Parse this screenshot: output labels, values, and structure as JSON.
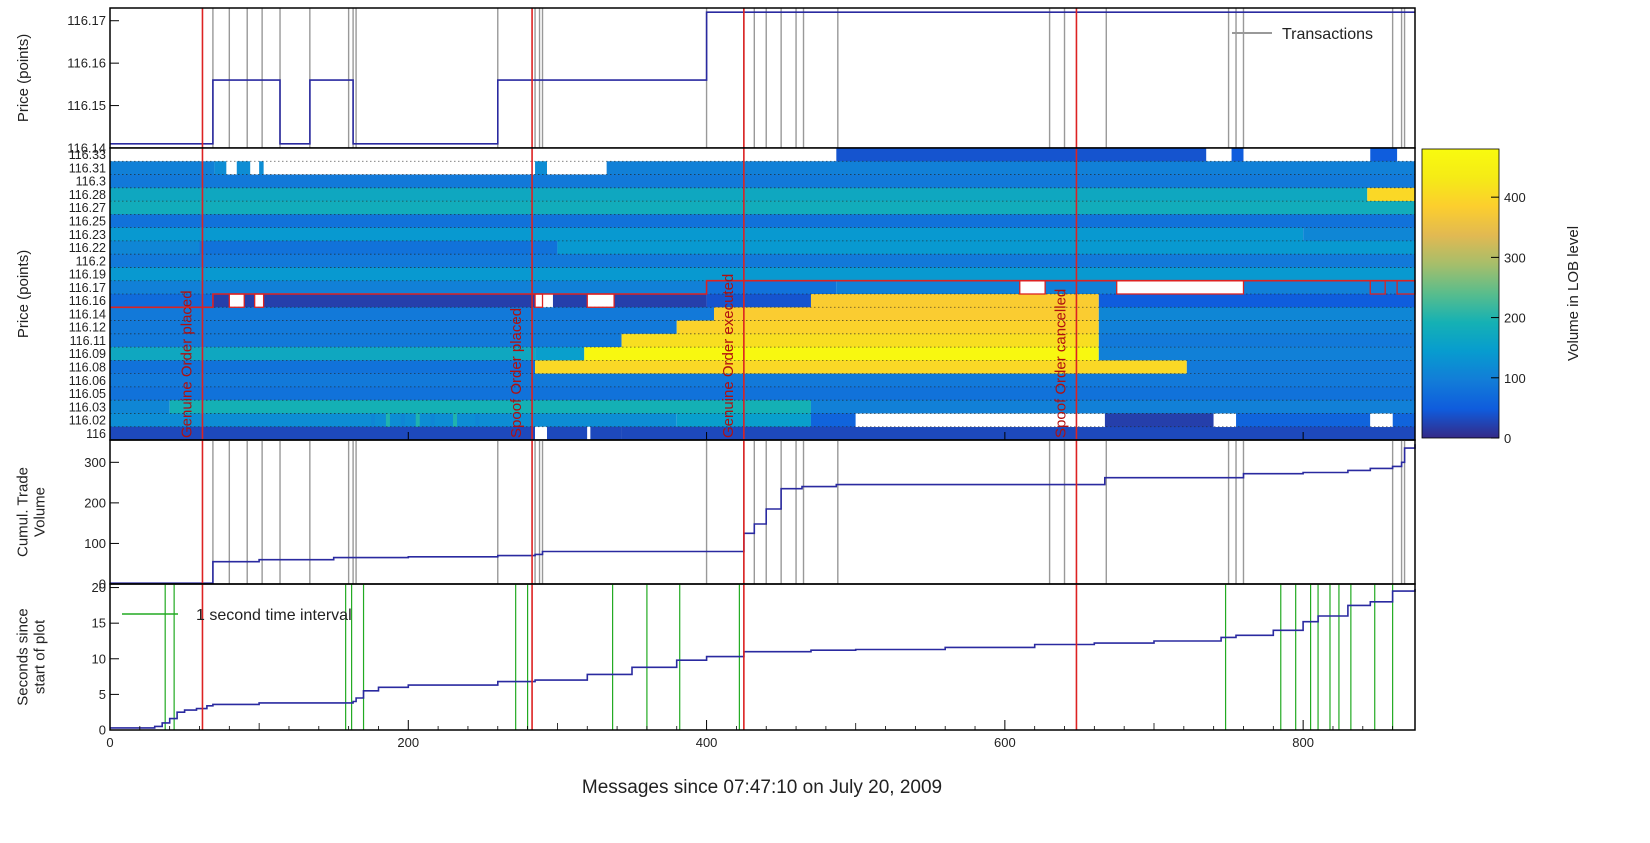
{
  "chart_data": [
    {
      "panel": "price",
      "type": "line",
      "ylabel": "Price (points)",
      "ylim": [
        116.14,
        116.173
      ],
      "yticks": [
        "116.14",
        "116.15",
        "116.16",
        "116.17"
      ],
      "legend": {
        "label": "Transactions",
        "placement": "top-right",
        "color": "#999999"
      },
      "series": [
        {
          "color": "#2a2aa0",
          "x": [
            0,
            69,
            69,
            114,
            114,
            134,
            134,
            163,
            163,
            260,
            260,
            400,
            400,
            875
          ],
          "y": [
            116.141,
            116.141,
            116.156,
            116.156,
            116.141,
            116.141,
            116.156,
            116.156,
            116.141,
            116.141,
            116.156,
            116.156,
            116.172,
            116.172
          ]
        }
      ]
    },
    {
      "panel": "lob",
      "type": "heatmap",
      "ylabel": "Price (points)",
      "levels": [
        "116",
        "116.02",
        "116.03",
        "116.05",
        "116.06",
        "116.08",
        "116.09",
        "116.11",
        "116.12",
        "116.14",
        "116.16",
        "116.17",
        "116.19",
        "116.2",
        "116.22",
        "116.23",
        "116.25",
        "116.27",
        "116.28",
        "116.3",
        "116.31",
        "116.33"
      ],
      "colorbar": {
        "label": "Volume in LOB level",
        "ticks": [
          0,
          100,
          200,
          300,
          400
        ],
        "max": 480
      },
      "cells": [
        {
          "level": "116.33",
          "x0": 487,
          "x1": 735,
          "vol": 40
        },
        {
          "level": "116.33",
          "x0": 752,
          "x1": 760,
          "vol": 50
        },
        {
          "level": "116.33",
          "x0": 845,
          "x1": 863,
          "vol": 50
        },
        {
          "level": "116.31",
          "x0": 0,
          "x1": 70,
          "vol": 100
        },
        {
          "level": "116.31",
          "x0": 70,
          "x1": 78,
          "vol": 120
        },
        {
          "level": "116.31",
          "x0": 85,
          "x1": 94,
          "vol": 120
        },
        {
          "level": "116.31",
          "x0": 100,
          "x1": 103,
          "vol": 120
        },
        {
          "level": "116.31",
          "x0": 285,
          "x1": 293,
          "vol": 120
        },
        {
          "level": "116.31",
          "x0": 333,
          "x1": 875,
          "vol": 100
        },
        {
          "level": "116.3",
          "x0": 0,
          "x1": 875,
          "vol": 90
        },
        {
          "level": "116.28",
          "x0": 0,
          "x1": 843,
          "vol": 170
        },
        {
          "level": "116.28",
          "x0": 843,
          "x1": 875,
          "vol": 400
        },
        {
          "level": "116.27",
          "x0": 0,
          "x1": 875,
          "vol": 180
        },
        {
          "level": "116.25",
          "x0": 0,
          "x1": 875,
          "vol": 80
        },
        {
          "level": "116.23",
          "x0": 0,
          "x1": 800,
          "vol": 140
        },
        {
          "level": "116.23",
          "x0": 800,
          "x1": 875,
          "vol": 110
        },
        {
          "level": "116.22",
          "x0": 0,
          "x1": 60,
          "vol": 110
        },
        {
          "level": "116.22",
          "x0": 60,
          "x1": 300,
          "vol": 80
        },
        {
          "level": "116.22",
          "x0": 300,
          "x1": 875,
          "vol": 140
        },
        {
          "level": "116.2",
          "x0": 0,
          "x1": 875,
          "vol": 90
        },
        {
          "level": "116.19",
          "x0": 0,
          "x1": 875,
          "vol": 140
        },
        {
          "level": "116.17",
          "x0": 0,
          "x1": 400,
          "vol": 100
        },
        {
          "level": "116.17",
          "x0": 400,
          "x1": 487,
          "vol": 80
        },
        {
          "level": "116.17",
          "x0": 487,
          "x1": 875,
          "vol": 100
        },
        {
          "level": "116.16",
          "x0": 0,
          "x1": 69,
          "vol": 70
        },
        {
          "level": "116.16",
          "x0": 69,
          "x1": 285,
          "vol": 20
        },
        {
          "level": "116.16",
          "x0": 297,
          "x1": 400,
          "vol": 20
        },
        {
          "level": "116.16",
          "x0": 400,
          "x1": 470,
          "vol": 40
        },
        {
          "level": "116.16",
          "x0": 470,
          "x1": 663,
          "vol": 380
        },
        {
          "level": "116.16",
          "x0": 663,
          "x1": 875,
          "vol": 50
        },
        {
          "level": "116.14",
          "x0": 0,
          "x1": 405,
          "vol": 90
        },
        {
          "level": "116.14",
          "x0": 405,
          "x1": 663,
          "vol": 380
        },
        {
          "level": "116.14",
          "x0": 663,
          "x1": 875,
          "vol": 110
        },
        {
          "level": "116.12",
          "x0": 0,
          "x1": 380,
          "vol": 90
        },
        {
          "level": "116.12",
          "x0": 380,
          "x1": 663,
          "vol": 390
        },
        {
          "level": "116.12",
          "x0": 663,
          "x1": 875,
          "vol": 100
        },
        {
          "level": "116.11",
          "x0": 0,
          "x1": 343,
          "vol": 90
        },
        {
          "level": "116.11",
          "x0": 343,
          "x1": 663,
          "vol": 410
        },
        {
          "level": "116.11",
          "x0": 663,
          "x1": 875,
          "vol": 90
        },
        {
          "level": "116.09",
          "x0": 0,
          "x1": 285,
          "vol": 170
        },
        {
          "level": "116.09",
          "x0": 285,
          "x1": 318,
          "vol": 150
        },
        {
          "level": "116.09",
          "x0": 318,
          "x1": 663,
          "vol": 470
        },
        {
          "level": "116.09",
          "x0": 663,
          "x1": 875,
          "vol": 100
        },
        {
          "level": "116.08",
          "x0": 0,
          "x1": 285,
          "vol": 80
        },
        {
          "level": "116.08",
          "x0": 285,
          "x1": 722,
          "vol": 400
        },
        {
          "level": "116.08",
          "x0": 722,
          "x1": 875,
          "vol": 90
        },
        {
          "level": "116.06",
          "x0": 0,
          "x1": 875,
          "vol": 90
        },
        {
          "level": "116.05",
          "x0": 0,
          "x1": 875,
          "vol": 80
        },
        {
          "level": "116.03",
          "x0": 0,
          "x1": 40,
          "vol": 110
        },
        {
          "level": "116.03",
          "x0": 40,
          "x1": 470,
          "vol": 190
        },
        {
          "level": "116.03",
          "x0": 470,
          "x1": 875,
          "vol": 100
        },
        {
          "level": "116.02",
          "x0": 0,
          "x1": 380,
          "vol": 120
        },
        {
          "level": "116.02",
          "x0": 380,
          "x1": 470,
          "vol": 150
        },
        {
          "level": "116.02",
          "x0": 470,
          "x1": 500,
          "vol": 60
        },
        {
          "level": "116.02",
          "x0": 667,
          "x1": 740,
          "vol": 20
        },
        {
          "level": "116.02",
          "x0": 755,
          "x1": 845,
          "vol": 60
        },
        {
          "level": "116.02",
          "x0": 860,
          "x1": 875,
          "vol": 60
        },
        {
          "level": "116",
          "x0": 0,
          "x1": 285,
          "vol": 30
        },
        {
          "level": "116",
          "x0": 293,
          "x1": 320,
          "vol": 30
        },
        {
          "level": "116",
          "x0": 322,
          "x1": 343,
          "vol": 30
        },
        {
          "level": "116",
          "x0": 343,
          "x1": 875,
          "vol": 30
        }
      ],
      "white_cells": [
        {
          "level": "116.16",
          "x0": 80,
          "x1": 90
        },
        {
          "level": "116.16",
          "x0": 97,
          "x1": 103
        },
        {
          "level": "116.16",
          "x0": 285,
          "x1": 290
        },
        {
          "level": "116.16",
          "x0": 320,
          "x1": 338
        },
        {
          "level": "116.17",
          "x0": 610,
          "x1": 627
        },
        {
          "level": "116.17",
          "x0": 675,
          "x1": 760
        },
        {
          "level": "116.02",
          "x0": 500,
          "x1": 667
        },
        {
          "level": "116.02",
          "x0": 740,
          "x1": 755
        },
        {
          "level": "116.02",
          "x0": 845,
          "x1": 860
        },
        {
          "level": "116",
          "x0": 285,
          "x1": 293
        },
        {
          "level": "116",
          "x0": 320,
          "x1": 322
        }
      ]
    },
    {
      "panel": "cumulative",
      "type": "line",
      "ylabel": "Cumul. Trade Volume",
      "ylim": [
        0,
        355
      ],
      "yticks": [
        0,
        100,
        200,
        300
      ],
      "series": [
        {
          "color": "#2a2aa0",
          "x": [
            0,
            69,
            69,
            100,
            150,
            200,
            260,
            285,
            290,
            425,
            425,
            432,
            432,
            440,
            440,
            450,
            450,
            464,
            487,
            667,
            667,
            755,
            760,
            800,
            830,
            845,
            860,
            866,
            868,
            875
          ],
          "y": [
            2,
            2,
            55,
            60,
            65,
            67,
            70,
            73,
            80,
            80,
            125,
            125,
            148,
            148,
            185,
            185,
            235,
            240,
            245,
            245,
            262,
            262,
            272,
            275,
            280,
            285,
            290,
            300,
            335,
            345
          ]
        }
      ]
    },
    {
      "panel": "seconds",
      "type": "line",
      "ylabel": "Seconds since start of plot",
      "ylim": [
        0,
        20.5
      ],
      "yticks": [
        0,
        5,
        10,
        15,
        20
      ],
      "legend": {
        "label": "1 second time interval",
        "placement": "top-left",
        "color": "#22aa22"
      },
      "series": [
        {
          "color": "#2a2aa0",
          "x": [
            0,
            30,
            35,
            40,
            45,
            50,
            58,
            65,
            69,
            100,
            163,
            165,
            170,
            180,
            200,
            260,
            285,
            320,
            350,
            380,
            400,
            425,
            470,
            500,
            560,
            620,
            660,
            700,
            745,
            755,
            780,
            800,
            810,
            830,
            845,
            860,
            875
          ],
          "y": [
            0.3,
            0.5,
            1.0,
            1.6,
            2.5,
            2.8,
            3.0,
            3.4,
            3.6,
            3.8,
            4.0,
            4.5,
            5.5,
            6.0,
            6.3,
            6.8,
            7.0,
            7.8,
            8.8,
            9.8,
            10.3,
            11.0,
            11.2,
            11.3,
            11.6,
            12.0,
            12.2,
            12.5,
            13.0,
            13.3,
            14.0,
            15.2,
            16.0,
            17.5,
            18.0,
            19.5,
            19.8
          ]
        }
      ]
    }
  ],
  "xaxis": {
    "label": "Messages since 07:47:10 on July 20, 2009",
    "xlim": [
      0,
      875
    ],
    "ticks": [
      0,
      200,
      400,
      600,
      800
    ]
  },
  "transactions_x": [
    69,
    80,
    92,
    102,
    114,
    134,
    160,
    163,
    165,
    260,
    285,
    288,
    290,
    400,
    425,
    432,
    440,
    450,
    460,
    465,
    488,
    630,
    640,
    668,
    750,
    755,
    760,
    860,
    866,
    868
  ],
  "second_intervals_x": [
    37,
    43,
    158,
    162,
    170,
    272,
    280,
    337,
    360,
    382,
    422,
    748,
    785,
    795,
    805,
    810,
    818,
    824,
    832,
    848,
    860
  ],
  "events": [
    {
      "x": 62,
      "label": "Genuine Order placed"
    },
    {
      "x": 283,
      "label": "Spoof Order placed"
    },
    {
      "x": 425,
      "label": "Genuine Order executed"
    },
    {
      "x": 648,
      "label": "Spoof Order cancelled"
    }
  ],
  "colors": {
    "price_line": "#2a2aa0",
    "transactions": "#999999",
    "events": "#dd2222",
    "interval": "#22aa22"
  }
}
